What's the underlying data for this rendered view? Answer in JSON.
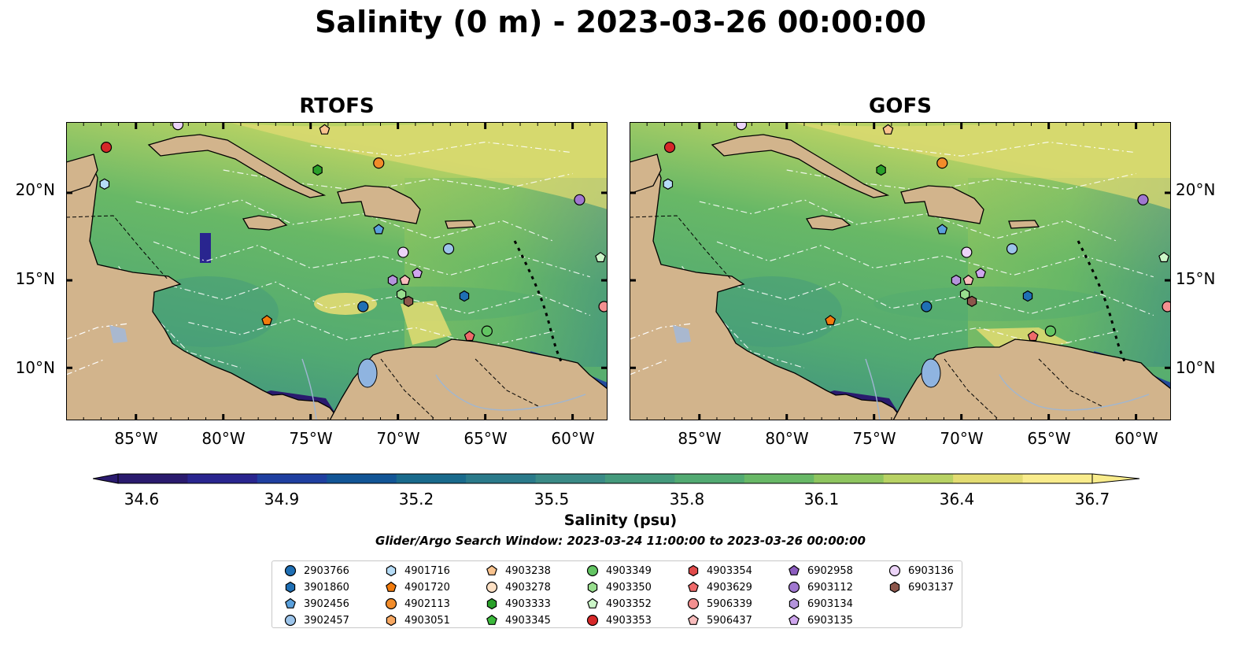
{
  "title": "Salinity (0 m) - 2023-03-26 00:00:00",
  "panels": [
    {
      "title": "RTOFS"
    },
    {
      "title": "GOFS"
    }
  ],
  "axes": {
    "lon_labels": [
      "85°W",
      "80°W",
      "75°W",
      "70°W",
      "65°W",
      "60°W"
    ],
    "lon_values": [
      -85,
      -80,
      -75,
      -70,
      -65,
      -60
    ],
    "lat_labels": [
      "20°N",
      "15°N",
      "10°N"
    ],
    "lat_values": [
      20,
      15,
      10
    ],
    "lon_range": [
      -89,
      -58
    ],
    "lat_range": [
      7,
      24
    ]
  },
  "colorbar": {
    "label": "Salinity (psu)",
    "ticks": [
      "34.6",
      "34.9",
      "35.2",
      "35.5",
      "35.8",
      "36.1",
      "36.4",
      "36.7"
    ],
    "range": [
      34.6,
      36.7
    ],
    "extend": "both",
    "colormap": "haline",
    "colors": [
      "#2a1a6e",
      "#29258f",
      "#1f3fa0",
      "#125596",
      "#196a8c",
      "#2a7a8a",
      "#3a8a86",
      "#449a7c",
      "#52aa72",
      "#68b866",
      "#8ec55f",
      "#b8d264",
      "#e3dc72",
      "#f9ec8c"
    ]
  },
  "search_window": "Glider/Argo Search Window: 2023-03-24 11:00:00 to 2023-03-26 00:00:00",
  "land_color": "#d2b48c",
  "legend": [
    {
      "label": "2903766",
      "color": "#1f6fb4",
      "marker": "circle"
    },
    {
      "label": "3901860",
      "color": "#1f6fb4",
      "marker": "hexagon"
    },
    {
      "label": "3902456",
      "color": "#5aa0dc",
      "marker": "pentagon"
    },
    {
      "label": "3902457",
      "color": "#9cc4ea",
      "marker": "circle"
    },
    {
      "label": "4901716",
      "color": "#b6dcf6",
      "marker": "hexagon"
    },
    {
      "label": "4901720",
      "color": "#f27b0c",
      "marker": "pentagon"
    },
    {
      "label": "4902113",
      "color": "#f28c2a",
      "marker": "circle"
    },
    {
      "label": "4903051",
      "color": "#f7a862",
      "marker": "hexagon"
    },
    {
      "label": "4903238",
      "color": "#f9c38e",
      "marker": "pentagon"
    },
    {
      "label": "4903278",
      "color": "#fde0c4",
      "marker": "circle"
    },
    {
      "label": "4903333",
      "color": "#2aa02a",
      "marker": "hexagon"
    },
    {
      "label": "4903345",
      "color": "#3cba3c",
      "marker": "pentagon"
    },
    {
      "label": "4903349",
      "color": "#62c462",
      "marker": "circle"
    },
    {
      "label": "4903350",
      "color": "#98de8e",
      "marker": "hexagon"
    },
    {
      "label": "4903352",
      "color": "#ccf6c8",
      "marker": "pentagon"
    },
    {
      "label": "4903353",
      "color": "#d62728",
      "marker": "circle"
    },
    {
      "label": "4903354",
      "color": "#e04a4a",
      "marker": "hexagon"
    },
    {
      "label": "4903629",
      "color": "#ef6a6a",
      "marker": "pentagon"
    },
    {
      "label": "5906339",
      "color": "#f49090",
      "marker": "circle"
    },
    {
      "label": "5906437",
      "color": "#f8bcbc",
      "marker": "pentagon"
    },
    {
      "label": "6902958",
      "color": "#8c5cbf",
      "marker": "pentagon"
    },
    {
      "label": "6903112",
      "color": "#a077d0",
      "marker": "circle"
    },
    {
      "label": "6903134",
      "color": "#b494dc",
      "marker": "hexagon"
    },
    {
      "label": "6903135",
      "color": "#cfa6ee",
      "marker": "pentagon"
    },
    {
      "label": "6903136",
      "color": "#ecd4f8",
      "marker": "circle"
    },
    {
      "label": "6903137",
      "color": "#8c564b",
      "marker": "hexagon"
    }
  ],
  "floats": [
    {
      "id": "4903353",
      "lon": -86.7,
      "lat": 22.6
    },
    {
      "id": "4901716",
      "lon": -86.8,
      "lat": 20.5
    },
    {
      "id": "6903136",
      "lon": -82.6,
      "lat": 23.9
    },
    {
      "id": "4903238",
      "lon": -74.2,
      "lat": 23.6
    },
    {
      "id": "4903333",
      "lon": -74.6,
      "lat": 21.3
    },
    {
      "id": "4902113",
      "lon": -71.1,
      "lat": 21.7
    },
    {
      "id": "3902456",
      "lon": -71.1,
      "lat": 17.9
    },
    {
      "id": "6903112",
      "lon": -59.6,
      "lat": 19.6
    },
    {
      "id": "4903352",
      "lon": -58.4,
      "lat": 16.3
    },
    {
      "id": "3902457",
      "lon": -67.1,
      "lat": 16.8
    },
    {
      "id": "6903136",
      "lon": -69.7,
      "lat": 16.6
    },
    {
      "id": "6903135",
      "lon": -68.9,
      "lat": 15.4
    },
    {
      "id": "6903134",
      "lon": -70.3,
      "lat": 15.0
    },
    {
      "id": "5906437",
      "lon": -69.6,
      "lat": 15.0
    },
    {
      "id": "4903350",
      "lon": -69.8,
      "lat": 14.2
    },
    {
      "id": "6903137",
      "lon": -69.4,
      "lat": 13.8
    },
    {
      "id": "3901860",
      "lon": -66.2,
      "lat": 14.1
    },
    {
      "id": "2903766",
      "lon": -72.0,
      "lat": 13.5
    },
    {
      "id": "4901720",
      "lon": -77.5,
      "lat": 12.7
    },
    {
      "id": "4903349",
      "lon": -64.9,
      "lat": 12.1
    },
    {
      "id": "4903629",
      "lon": -65.9,
      "lat": 11.8
    },
    {
      "id": "5906339",
      "lon": -58.2,
      "lat": 13.5
    }
  ]
}
